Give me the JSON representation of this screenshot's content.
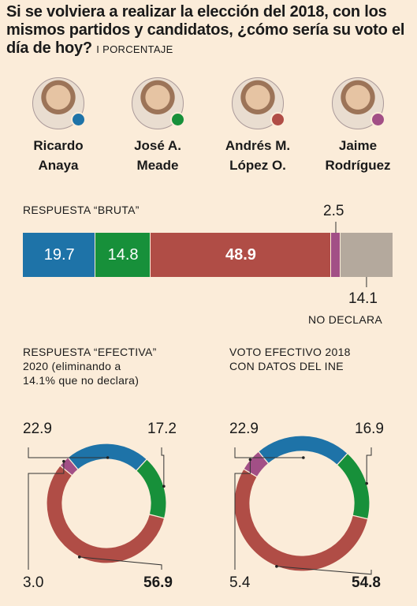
{
  "title": "Si se volviera a realizar la elección del 2018, con los mismos partidos y candidatos, ¿cómo sería su voto el día de hoy?",
  "title_suffix": "I PORCENTAJE",
  "colors": {
    "anaya": "#1e73a8",
    "meade": "#17903a",
    "amlo": "#b04d46",
    "jaime": "#a24f86",
    "nodeclara": "#b4a99d",
    "background": "#fbecd9"
  },
  "candidates": [
    {
      "name_line1": "Ricardo",
      "name_line2": "Anaya",
      "color": "#1e73a8"
    },
    {
      "name_line1": "José A.",
      "name_line2": "Meade",
      "color": "#17903a"
    },
    {
      "name_line1": "Andrés M.",
      "name_line2": "López O.",
      "color": "#b04d46"
    },
    {
      "name_line1": "Jaime",
      "name_line2": "Rodríguez",
      "color": "#a24f86"
    }
  ],
  "chart_data": [
    {
      "type": "bar",
      "title": "RESPUESTA “BRUTA”",
      "categories": [
        "Ricardo Anaya",
        "José A. Meade",
        "Andrés M. López O.",
        "Jaime Rodríguez",
        "NO DECLARA"
      ],
      "values": [
        19.7,
        14.8,
        48.9,
        2.5,
        14.1
      ],
      "labels": [
        "19.7",
        "14.8",
        "48.9",
        "2.5",
        "14.1"
      ],
      "nodeclara_label": "NO DECLARA"
    },
    {
      "type": "pie",
      "title_line1": "RESPUESTA “EFECTIVA”",
      "title_line2": "2020 (eliminando a",
      "title_line3": "14.1% que no declara)",
      "categories": [
        "Ricardo Anaya",
        "José A. Meade",
        "Andrés M. López O.",
        "Jaime Rodríguez"
      ],
      "values": [
        22.9,
        17.2,
        56.9,
        3.0
      ],
      "labels": [
        "22.9",
        "17.2",
        "56.9",
        "3.0"
      ]
    },
    {
      "type": "pie",
      "title_line1": "VOTO EFECTIVO 2018",
      "title_line2": "CON DATOS DEL INE",
      "categories": [
        "Ricardo Anaya",
        "José A. Meade",
        "Andrés M. López O.",
        "Jaime Rodríguez"
      ],
      "values": [
        22.9,
        16.9,
        54.8,
        5.4
      ],
      "labels": [
        "22.9",
        "16.9",
        "54.8",
        "5.4"
      ]
    }
  ]
}
